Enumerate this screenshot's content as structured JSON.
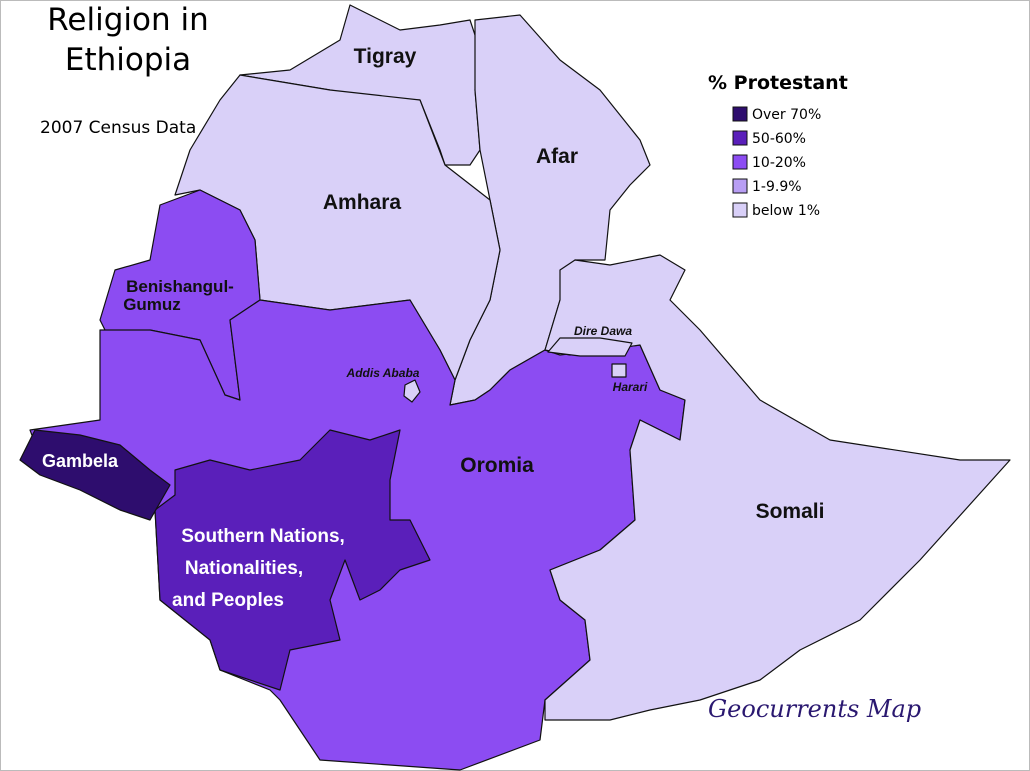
{
  "title": [
    "Religion in",
    "Ethiopia"
  ],
  "subtitle": "2007 Census Data",
  "legend": {
    "title": "% Protestant",
    "items": [
      {
        "label": "Over 70%",
        "color": "#2e0d6e"
      },
      {
        "label": "50-60%",
        "color": "#5a1fba"
      },
      {
        "label": "10-20%",
        "color": "#8c4cf2"
      },
      {
        "label": "1-9.9%",
        "color": "#b89ef4"
      },
      {
        "label": "below 1%",
        "color": "#d9d0f8"
      }
    ]
  },
  "regions": [
    "Tigray",
    "Afar",
    "Amhara",
    "Benishangul-",
    "Gumuz",
    "Dire Dawa",
    "Addis Ababa",
    "Harari",
    "Gambela",
    "Oromia",
    "Somali",
    "Southern Nations,",
    "Nationalities,",
    "and Peoples"
  ],
  "credit": "Geocurrents Map"
}
